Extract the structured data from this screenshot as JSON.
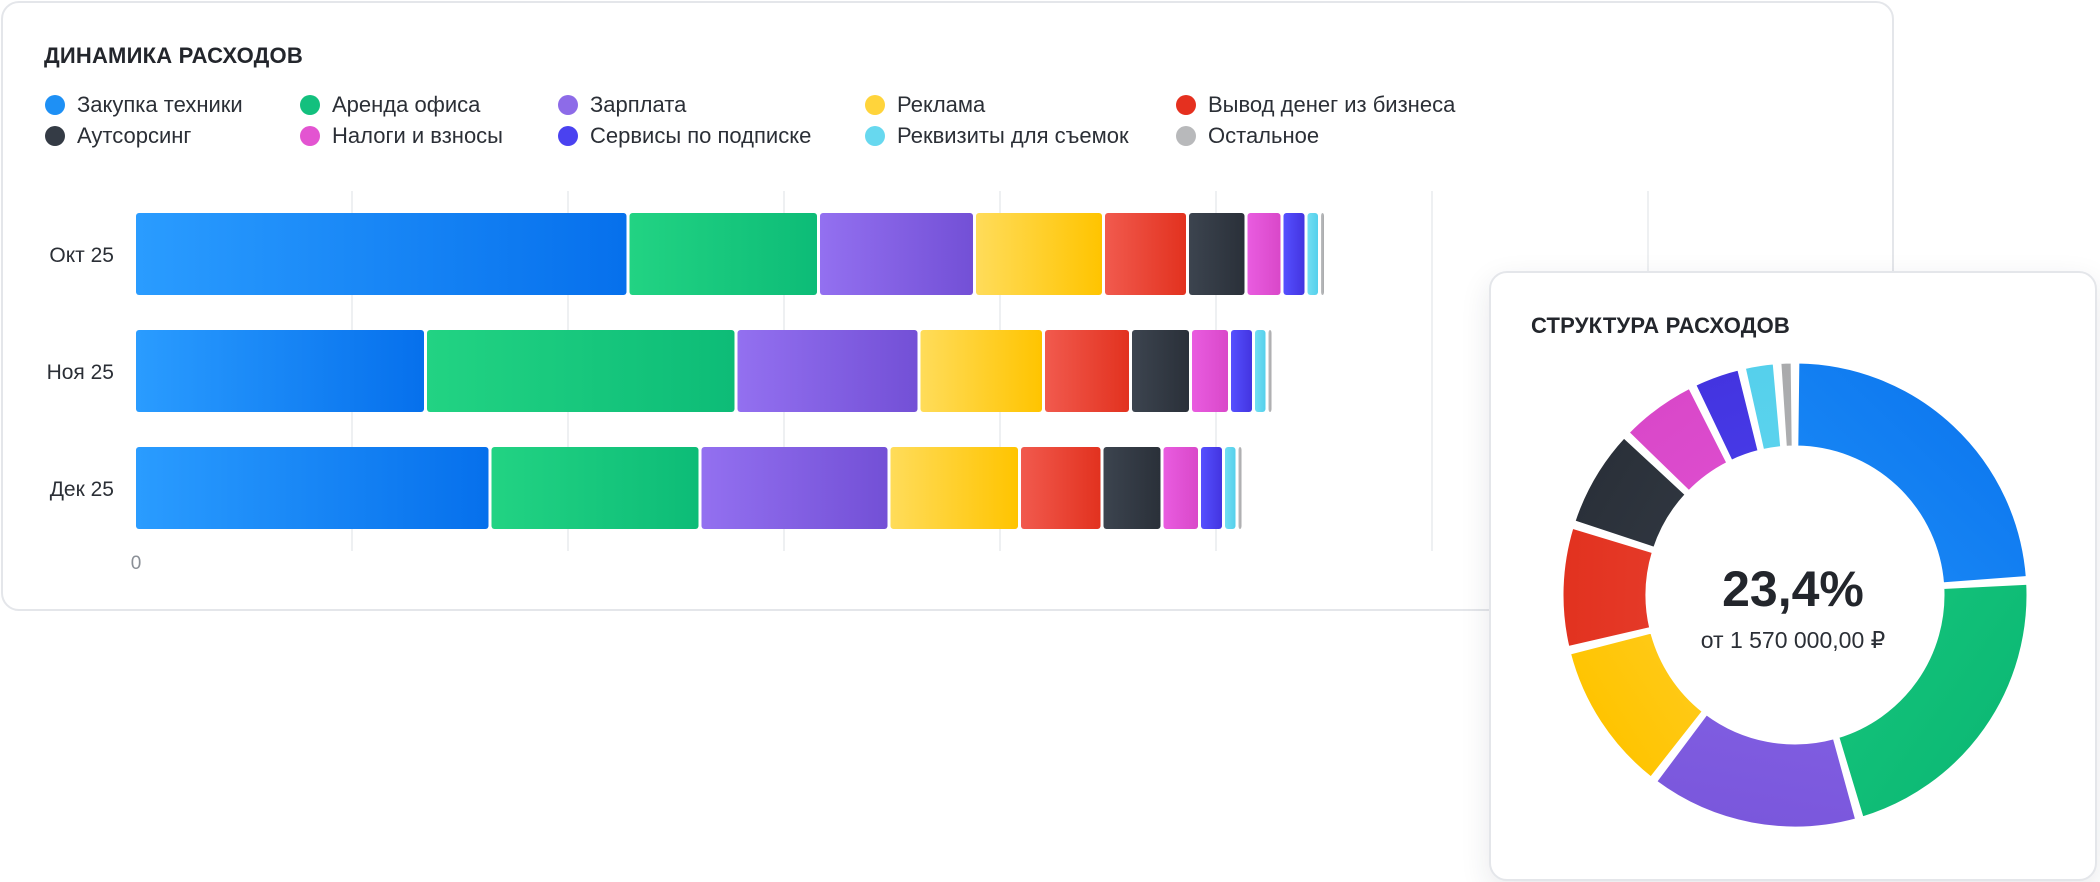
{
  "dynamics": {
    "title": "ДИНАМИКА РАСХОДОВ"
  },
  "structure": {
    "title": "СТРУКТУРА РАСХОДОВ",
    "center_value": "23,4%",
    "center_subtitle": "от 1 570 000,00 ₽"
  },
  "legend": [
    {
      "label": "Закупка техники",
      "color": "#1e90f5"
    },
    {
      "label": "Аренда офиса",
      "color": "#13c07e"
    },
    {
      "label": "Зарплата",
      "color": "#8d6be8"
    },
    {
      "label": "Реклама",
      "color": "#ffd43b"
    },
    {
      "label": "Вывод денег из бизнеса",
      "color": "#e5301f"
    },
    {
      "label": "Аутсорсинг",
      "color": "#343b45"
    },
    {
      "label": "Налоги и взносы",
      "color": "#e354d1"
    },
    {
      "label": "Сервисы по подписке",
      "color": "#4a42f0"
    },
    {
      "label": "Реквизиты для съемок",
      "color": "#67d8ef"
    },
    {
      "label": "Остальное",
      "color": "#b8b9bb"
    }
  ],
  "chart_data": [
    {
      "type": "bar",
      "orientation": "horizontal",
      "stacked": true,
      "title": "ДИНАМИКА РАСХОДОВ",
      "categories": [
        "Окт 25",
        "Ноя 25",
        "Дек 25"
      ],
      "x_tick_labels": [
        "0"
      ],
      "grid": true,
      "legend_position": "top",
      "series": [
        {
          "name": "Закупка техники",
          "color_from": "#2a9cff",
          "color_to": "#0670ec",
          "values": [
            329,
            194,
            237
          ]
        },
        {
          "name": "Аренда офиса",
          "color_from": "#22d383",
          "color_to": "#0dbc77",
          "values": [
            127,
            207,
            140
          ]
        },
        {
          "name": "Зарплата",
          "color_from": "#9370f0",
          "color_to": "#7350d6",
          "values": [
            104,
            122,
            126
          ]
        },
        {
          "name": "Реклама",
          "color_from": "#ffdc5a",
          "color_to": "#ffc400",
          "values": [
            86,
            83,
            87
          ]
        },
        {
          "name": "Вывод денег из бизнеса",
          "color_from": "#f15a4e",
          "color_to": "#e2321f",
          "values": [
            56,
            58,
            55
          ]
        },
        {
          "name": "Аутсорсинг",
          "color_from": "#3c444f",
          "color_to": "#2a3039",
          "values": [
            39,
            40,
            40
          ]
        },
        {
          "name": "Налоги и взносы",
          "color_from": "#e95ce0",
          "color_to": "#d948c9",
          "values": [
            24,
            26,
            25
          ]
        },
        {
          "name": "Сервисы по подписке",
          "color_from": "#5550ff",
          "color_to": "#4334e0",
          "values": [
            16,
            16,
            16
          ]
        },
        {
          "name": "Реквизиты для съемок",
          "color_from": "#72def2",
          "color_to": "#55d0ec",
          "values": [
            9,
            9,
            9
          ]
        },
        {
          "name": "Остальное",
          "color_from": "#bcbdbf",
          "color_to": "#a9aaac",
          "values": [
            4,
            4,
            4
          ]
        }
      ]
    },
    {
      "type": "pie",
      "donut": true,
      "title": "СТРУКТУРА РАСХОДОВ",
      "center_label": "23,4%",
      "center_sublabel": "от 1 570 000,00 ₽",
      "categories": [
        "Закупка техники",
        "Аренда офиса",
        "Зарплата",
        "Реклама",
        "Вывод денег из бизнеса",
        "Аутсорсинг",
        "Налоги и взносы",
        "Сервисы по подписке",
        "Реквизиты для съемок",
        "Остальное"
      ],
      "values": [
        23.4,
        21.0,
        14.5,
        10.5,
        8.5,
        7.0,
        5.5,
        3.5,
        2.4,
        1.2
      ],
      "colors": [
        [
          "#0f7af0",
          "#2aa0ff"
        ],
        [
          "#0dba75",
          "#22d383"
        ],
        [
          "#7a57dc",
          "#9370f0"
        ],
        [
          "#ffc400",
          "#ffdf6c"
        ],
        [
          "#e2321f",
          "#f15a4e"
        ],
        [
          "#2a3039",
          "#434b56"
        ],
        [
          "#d948c9",
          "#e95ce0"
        ],
        [
          "#4334e0",
          "#5550ff"
        ],
        [
          "#55d0ec",
          "#72def2"
        ],
        [
          "#a9aaac",
          "#bcbdbf"
        ]
      ]
    }
  ]
}
